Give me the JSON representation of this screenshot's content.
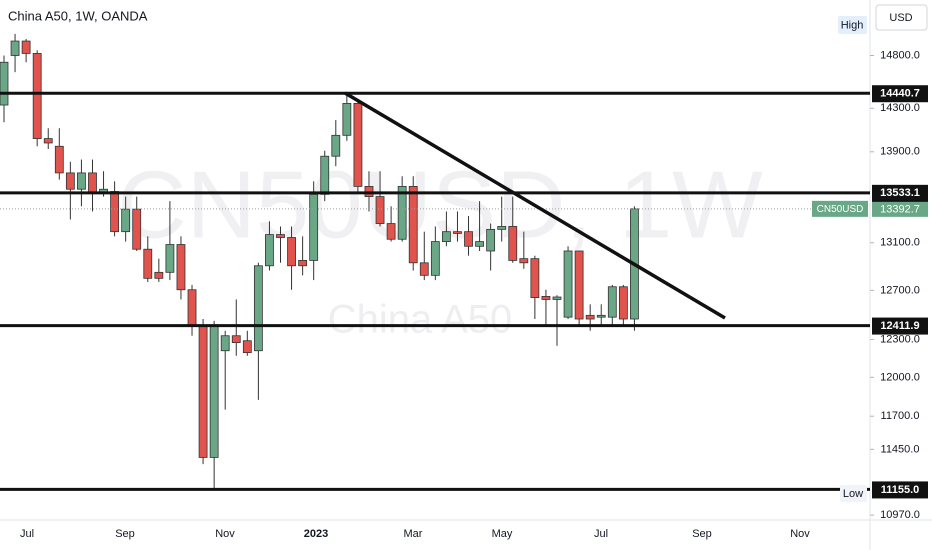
{
  "chart_data": {
    "type": "candlestick",
    "title": "China A50, 1W, OANDA",
    "watermark": "CN50USD, 1W",
    "watermark_sub": "China A50",
    "currency": "USD",
    "high_label": "High",
    "low_label": "Low",
    "log_scale": true,
    "up_color": "#6aa786",
    "down_color": "#e0544d",
    "ylim": [
      10935,
      15345
    ],
    "yticks": [
      {
        "value": 14800,
        "label": "14800.0"
      },
      {
        "value": 14300,
        "label": "14300.0"
      },
      {
        "value": 13900,
        "label": "13900.0"
      },
      {
        "value": 13100,
        "label": "13100.0"
      },
      {
        "value": 12700,
        "label": "12700.0"
      },
      {
        "value": 12300,
        "label": "12300.0"
      },
      {
        "value": 12000,
        "label": "12000.0"
      },
      {
        "value": 11700,
        "label": "11700.0"
      },
      {
        "value": 11450,
        "label": "11450.0"
      },
      {
        "value": 10970,
        "label": "10970.0"
      }
    ],
    "x_labels": [
      "Jul",
      "Sep",
      "Nov",
      "2023",
      "Mar",
      "May",
      "Jul",
      "Sep",
      "Nov"
    ],
    "levels": [
      {
        "value": 14440.7,
        "label": "14440.7"
      },
      {
        "value": 13533.1,
        "label": "13533.1"
      },
      {
        "value": 12411.9,
        "label": "12411.9"
      },
      {
        "value": 11155.0,
        "label": "11155.0"
      }
    ],
    "last_price": {
      "name": "CN50USD",
      "value": 13392.7
    },
    "open": [
      14330,
      14800,
      14940,
      14820,
      14020,
      13950,
      13710,
      13565,
      13710,
      13530,
      13545,
      13195,
      13390,
      13045,
      12850,
      12850,
      13085,
      12705,
      12410,
      11390,
      12210,
      12330,
      12290,
      12210,
      12905,
      13170,
      13145,
      12950,
      12950,
      13520,
      13860,
      14050,
      14345,
      13590,
      13500,
      13265,
      13130,
      13590,
      12930,
      12825,
      13110,
      13195,
      13195,
      13070,
      13030,
      13215,
      13240,
      12965,
      12965,
      12650,
      12625,
      12480,
      13030,
      12495,
      12480,
      12480,
      12730,
      12465
    ],
    "close": [
      14735,
      14940,
      14820,
      14020,
      13980,
      13710,
      13565,
      13710,
      13530,
      13565,
      13195,
      13390,
      13045,
      12800,
      12800,
      13085,
      12705,
      12410,
      11390,
      12410,
      12330,
      12275,
      12195,
      12905,
      13170,
      13145,
      12905,
      12905,
      13520,
      13860,
      14050,
      14345,
      13590,
      13500,
      13265,
      13130,
      13590,
      12930,
      12825,
      13110,
      13195,
      13180,
      13070,
      13110,
      13215,
      13240,
      12950,
      12930,
      12640,
      12625,
      12645,
      13030,
      12465,
      12465,
      12495,
      12730,
      12465,
      13392.7
    ],
    "high": [
      14800,
      15010,
      14960,
      14850,
      14115,
      14115,
      13810,
      13830,
      13830,
      13725,
      13635,
      13500,
      13500,
      13155,
      12965,
      13460,
      13155,
      12745,
      12465,
      12450,
      12370,
      12625,
      12370,
      12930,
      13285,
      13240,
      13240,
      13155,
      13635,
      13910,
      14190,
      14440,
      14375,
      13725,
      13725,
      13415,
      13680,
      13680,
      13195,
      13240,
      13370,
      13370,
      13330,
      13460,
      13265,
      13500,
      13500,
      13195,
      12990,
      12705,
      12660,
      13070,
      13030,
      12585,
      12585,
      12745,
      12745,
      13415
    ],
    "low": [
      14170,
      14640,
      14735,
      13950,
      13925,
      13650,
      13300,
      13415,
      13370,
      13500,
      13155,
      13110,
      13030,
      12770,
      12770,
      12785,
      12625,
      12330,
      11340,
      11155,
      11750,
      12170,
      12170,
      11825,
      12865,
      12930,
      12705,
      12825,
      12785,
      13460,
      13770,
      14000,
      13545,
      13370,
      13240,
      13110,
      13110,
      12865,
      12785,
      12785,
      13070,
      13110,
      12990,
      13030,
      12865,
      13110,
      12930,
      12880,
      12465,
      12410,
      12250,
      12465,
      12410,
      12370,
      12410,
      12410,
      12410,
      12370
    ]
  }
}
